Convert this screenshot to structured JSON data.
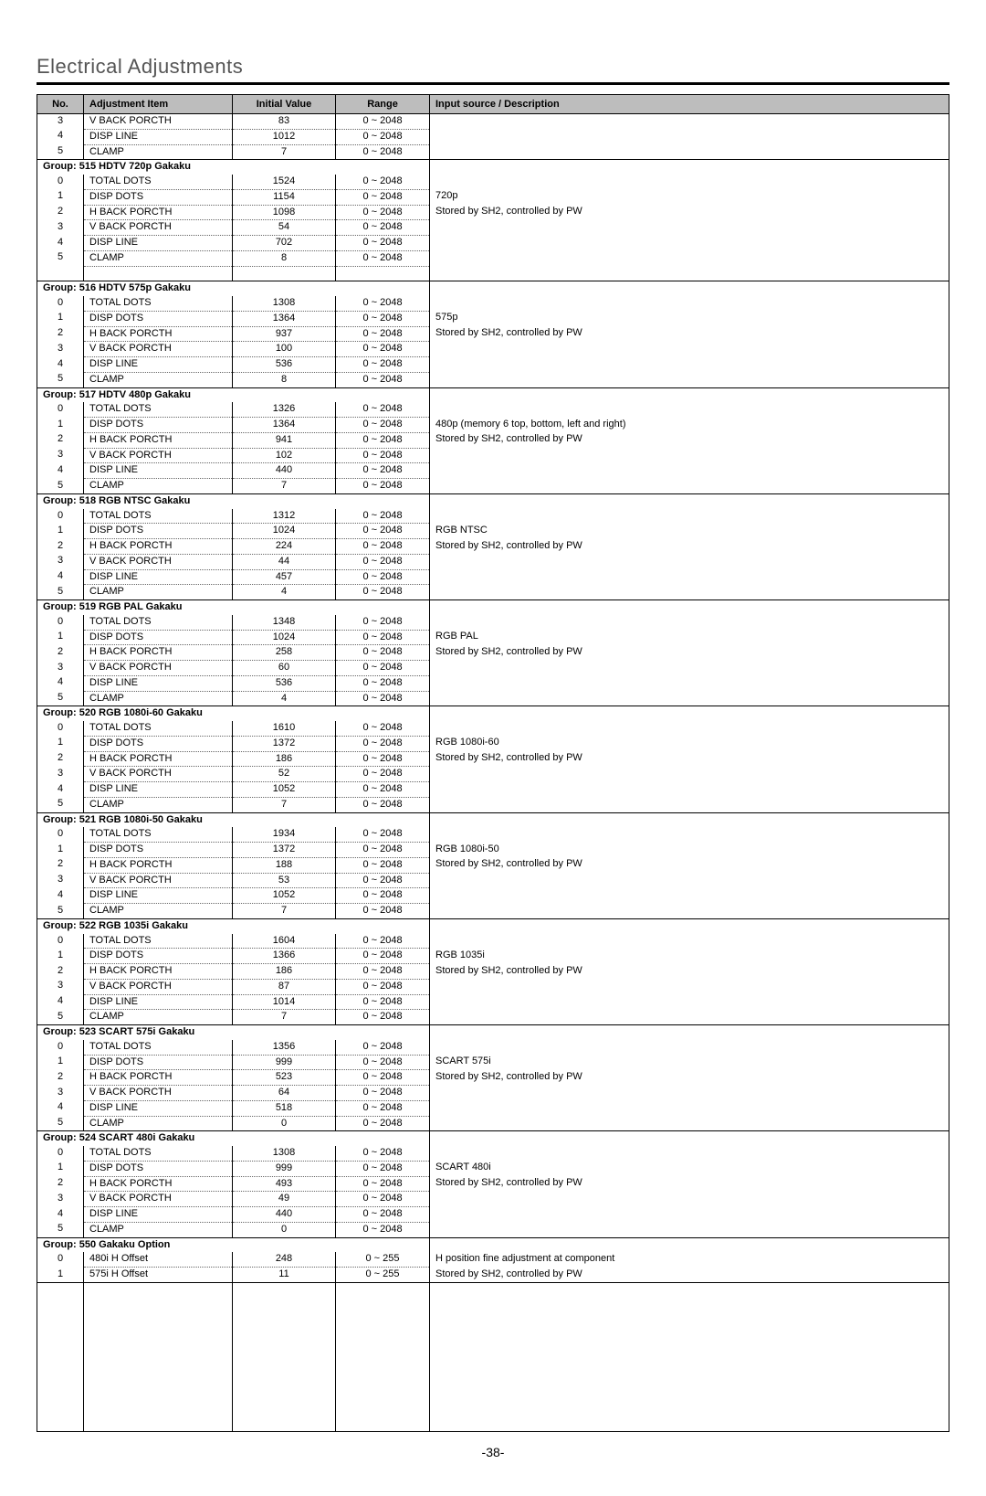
{
  "page_title": "Electrical Adjustments",
  "page_number": "-38-",
  "columns": [
    "No.",
    "Adjustment Item",
    "Initial Value",
    "Range",
    "Input source / Description"
  ],
  "header_bg": "#bdbdbd",
  "initial_rows": [
    {
      "no": "3",
      "item": "V BACK PORCTH",
      "init": "83",
      "range": "0 ~ 2048",
      "desc": ""
    },
    {
      "no": "4",
      "item": "DISP LINE",
      "init": "1012",
      "range": "0 ~ 2048",
      "desc": ""
    },
    {
      "no": "5",
      "item": "CLAMP",
      "init": "7",
      "range": "0 ~ 2048",
      "desc": ""
    }
  ],
  "groups": [
    {
      "label": "Group: 515 HDTV 720p Gakaku",
      "rows": [
        {
          "no": "0",
          "item": "TOTAL DOTS",
          "init": "1524",
          "range": "0 ~ 2048",
          "desc": ""
        },
        {
          "no": "1",
          "item": "DISP DOTS",
          "init": "1154",
          "range": "0 ~ 2048",
          "desc": "720p"
        },
        {
          "no": "2",
          "item": "H BACK PORCTH",
          "init": "1098",
          "range": "0 ~ 2048",
          "desc": "Stored by SH2, controlled by PW"
        },
        {
          "no": "3",
          "item": "V BACK PORCTH",
          "init": "54",
          "range": "0 ~ 2048",
          "desc": ""
        },
        {
          "no": "4",
          "item": "DISP LINE",
          "init": "702",
          "range": "0 ~ 2048",
          "desc": ""
        },
        {
          "no": "5",
          "item": "CLAMP",
          "init": "8",
          "range": "0 ~ 2048",
          "desc": ""
        }
      ],
      "extra_gap": true
    },
    {
      "label": "Group: 516 HDTV 575p Gakaku",
      "rows": [
        {
          "no": "0",
          "item": "TOTAL DOTS",
          "init": "1308",
          "range": "0 ~ 2048",
          "desc": ""
        },
        {
          "no": "1",
          "item": "DISP DOTS",
          "init": "1364",
          "range": "0 ~ 2048",
          "desc": "575p"
        },
        {
          "no": "2",
          "item": "H BACK PORCTH",
          "init": "937",
          "range": "0 ~ 2048",
          "desc": "Stored by SH2, controlled by PW"
        },
        {
          "no": "3",
          "item": "V BACK PORCTH",
          "init": "100",
          "range": "0 ~ 2048",
          "desc": ""
        },
        {
          "no": "4",
          "item": "DISP LINE",
          "init": "536",
          "range": "0 ~ 2048",
          "desc": ""
        },
        {
          "no": "5",
          "item": "CLAMP",
          "init": "8",
          "range": "0 ~ 2048",
          "desc": ""
        }
      ]
    },
    {
      "label": "Group: 517 HDTV 480p Gakaku",
      "rows": [
        {
          "no": "0",
          "item": "TOTAL DOTS",
          "init": "1326",
          "range": "0 ~ 2048",
          "desc": ""
        },
        {
          "no": "1",
          "item": "DISP DOTS",
          "init": "1364",
          "range": "0 ~ 2048",
          "desc": "480p (memory 6 top, bottom, left and right)"
        },
        {
          "no": "2",
          "item": "H BACK PORCTH",
          "init": "941",
          "range": "0 ~ 2048",
          "desc": "Stored by SH2, controlled by PW"
        },
        {
          "no": "3",
          "item": "V BACK PORCTH",
          "init": "102",
          "range": "0 ~ 2048",
          "desc": ""
        },
        {
          "no": "4",
          "item": "DISP LINE",
          "init": "440",
          "range": "0 ~ 2048",
          "desc": ""
        },
        {
          "no": "5",
          "item": "CLAMP",
          "init": "7",
          "range": "0 ~ 2048",
          "desc": ""
        }
      ]
    },
    {
      "label": "Group: 518 RGB NTSC Gakaku",
      "rows": [
        {
          "no": "0",
          "item": "TOTAL DOTS",
          "init": "1312",
          "range": "0 ~ 2048",
          "desc": ""
        },
        {
          "no": "1",
          "item": "DISP DOTS",
          "init": "1024",
          "range": "0 ~ 2048",
          "desc": "RGB NTSC"
        },
        {
          "no": "2",
          "item": "H BACK PORCTH",
          "init": "224",
          "range": "0 ~ 2048",
          "desc": "Stored by SH2, controlled by PW"
        },
        {
          "no": "3",
          "item": "V BACK PORCTH",
          "init": "44",
          "range": "0 ~ 2048",
          "desc": ""
        },
        {
          "no": "4",
          "item": "DISP LINE",
          "init": "457",
          "range": "0 ~ 2048",
          "desc": ""
        },
        {
          "no": "5",
          "item": "CLAMP",
          "init": "4",
          "range": "0 ~ 2048",
          "desc": ""
        }
      ]
    },
    {
      "label": "Group: 519 RGB PAL Gakaku",
      "rows": [
        {
          "no": "0",
          "item": "TOTAL DOTS",
          "init": "1348",
          "range": "0 ~ 2048",
          "desc": ""
        },
        {
          "no": "1",
          "item": "DISP DOTS",
          "init": "1024",
          "range": "0 ~ 2048",
          "desc": "RGB PAL"
        },
        {
          "no": "2",
          "item": "H BACK PORCTH",
          "init": "258",
          "range": "0 ~ 2048",
          "desc": "Stored by SH2, controlled by PW"
        },
        {
          "no": "3",
          "item": "V BACK PORCTH",
          "init": "60",
          "range": "0 ~ 2048",
          "desc": ""
        },
        {
          "no": "4",
          "item": "DISP LINE",
          "init": "536",
          "range": "0 ~ 2048",
          "desc": ""
        },
        {
          "no": "5",
          "item": "CLAMP",
          "init": "4",
          "range": "0 ~ 2048",
          "desc": ""
        }
      ]
    },
    {
      "label": "Group: 520 RGB 1080i-60 Gakaku",
      "rows": [
        {
          "no": "0",
          "item": "TOTAL DOTS",
          "init": "1610",
          "range": "0 ~ 2048",
          "desc": ""
        },
        {
          "no": "1",
          "item": "DISP DOTS",
          "init": "1372",
          "range": "0 ~ 2048",
          "desc": "RGB 1080i-60"
        },
        {
          "no": "2",
          "item": "H BACK PORCTH",
          "init": "186",
          "range": "0 ~ 2048",
          "desc": "Stored by SH2, controlled by PW"
        },
        {
          "no": "3",
          "item": "V BACK PORCTH",
          "init": "52",
          "range": "0 ~ 2048",
          "desc": ""
        },
        {
          "no": "4",
          "item": "DISP LINE",
          "init": "1052",
          "range": "0 ~ 2048",
          "desc": ""
        },
        {
          "no": "5",
          "item": "CLAMP",
          "init": "7",
          "range": "0 ~ 2048",
          "desc": ""
        }
      ]
    },
    {
      "label": "Group: 521 RGB 1080i-50 Gakaku",
      "rows": [
        {
          "no": "0",
          "item": "TOTAL DOTS",
          "init": "1934",
          "range": "0 ~ 2048",
          "desc": ""
        },
        {
          "no": "1",
          "item": "DISP DOTS",
          "init": "1372",
          "range": "0 ~ 2048",
          "desc": "RGB 1080i-50"
        },
        {
          "no": "2",
          "item": "H BACK PORCTH",
          "init": "188",
          "range": "0 ~ 2048",
          "desc": "Stored by SH2, controlled by PW"
        },
        {
          "no": "3",
          "item": "V BACK PORCTH",
          "init": "53",
          "range": "0 ~ 2048",
          "desc": ""
        },
        {
          "no": "4",
          "item": "DISP LINE",
          "init": "1052",
          "range": "0 ~ 2048",
          "desc": ""
        },
        {
          "no": "5",
          "item": "CLAMP",
          "init": "7",
          "range": "0 ~ 2048",
          "desc": ""
        }
      ]
    },
    {
      "label": "Group: 522 RGB 1035i Gakaku",
      "rows": [
        {
          "no": "0",
          "item": "TOTAL DOTS",
          "init": "1604",
          "range": "0 ~ 2048",
          "desc": ""
        },
        {
          "no": "1",
          "item": "DISP DOTS",
          "init": "1366",
          "range": "0 ~ 2048",
          "desc": "RGB 1035i"
        },
        {
          "no": "2",
          "item": "H BACK PORCTH",
          "init": "186",
          "range": "0 ~ 2048",
          "desc": "Stored by SH2, controlled by PW"
        },
        {
          "no": "3",
          "item": "V BACK PORCTH",
          "init": "87",
          "range": "0 ~ 2048",
          "desc": ""
        },
        {
          "no": "4",
          "item": "DISP LINE",
          "init": "1014",
          "range": "0 ~ 2048",
          "desc": ""
        },
        {
          "no": "5",
          "item": "CLAMP",
          "init": "7",
          "range": "0 ~ 2048",
          "desc": ""
        }
      ]
    },
    {
      "label": "Group: 523 SCART 575i Gakaku",
      "rows": [
        {
          "no": "0",
          "item": "TOTAL DOTS",
          "init": "1356",
          "range": "0 ~ 2048",
          "desc": ""
        },
        {
          "no": "1",
          "item": "DISP DOTS",
          "init": "999",
          "range": "0 ~ 2048",
          "desc": "SCART 575i"
        },
        {
          "no": "2",
          "item": "H BACK PORCTH",
          "init": "523",
          "range": "0 ~ 2048",
          "desc": "Stored by SH2, controlled by PW"
        },
        {
          "no": "3",
          "item": "V BACK PORCTH",
          "init": "64",
          "range": "0 ~ 2048",
          "desc": ""
        },
        {
          "no": "4",
          "item": "DISP LINE",
          "init": "518",
          "range": "0 ~ 2048",
          "desc": ""
        },
        {
          "no": "5",
          "item": "CLAMP",
          "init": "0",
          "range": "0 ~ 2048",
          "desc": ""
        }
      ]
    },
    {
      "label": "Group: 524 SCART 480i Gakaku",
      "rows": [
        {
          "no": "0",
          "item": "TOTAL DOTS",
          "init": "1308",
          "range": "0 ~ 2048",
          "desc": ""
        },
        {
          "no": "1",
          "item": "DISP DOTS",
          "init": "999",
          "range": "0 ~ 2048",
          "desc": "SCART 480i"
        },
        {
          "no": "2",
          "item": "H BACK PORCTH",
          "init": "493",
          "range": "0 ~ 2048",
          "desc": "Stored by SH2, controlled by PW"
        },
        {
          "no": "3",
          "item": "V BACK PORCTH",
          "init": "49",
          "range": "0 ~ 2048",
          "desc": ""
        },
        {
          "no": "4",
          "item": "DISP LINE",
          "init": "440",
          "range": "0 ~ 2048",
          "desc": ""
        },
        {
          "no": "5",
          "item": "CLAMP",
          "init": "0",
          "range": "0 ~ 2048",
          "desc": ""
        }
      ]
    },
    {
      "label": "Group: 550 Gakaku Option",
      "rows": [
        {
          "no": "0",
          "item": "480i H Offset",
          "init": "248",
          "range": "0 ~ 255",
          "desc": "H position fine adjustment at component"
        },
        {
          "no": "1",
          "item": "575i H Offset",
          "init": "11",
          "range": "0 ~ 255",
          "desc": "Stored by SH2, controlled by PW"
        }
      ]
    }
  ]
}
